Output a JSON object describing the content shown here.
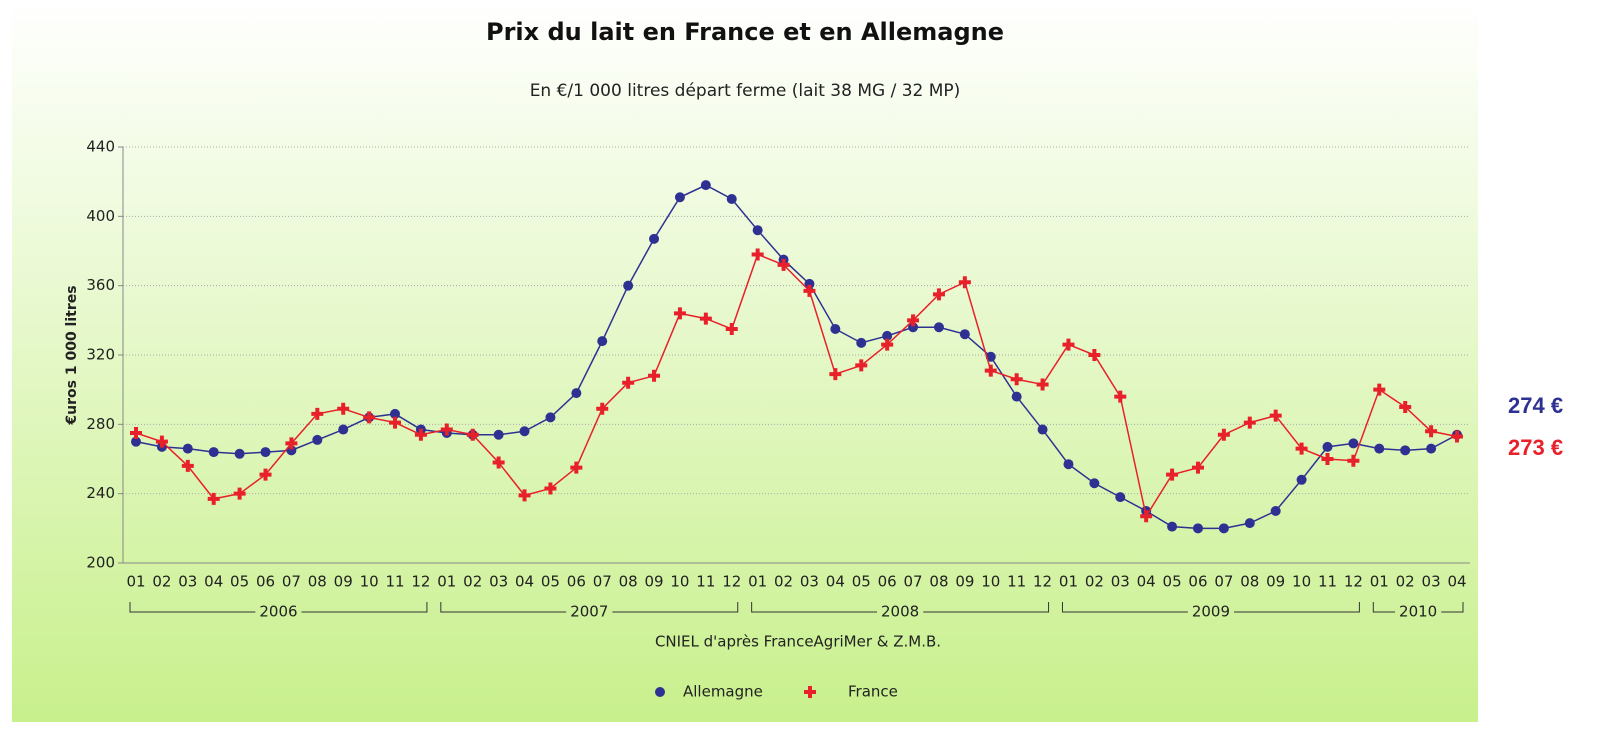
{
  "chart_data": {
    "type": "line",
    "title": "Prix du lait en France et en Allemagne",
    "subtitle": "En €/1 000 litres départ ferme (lait 38 MG / 32 MP)",
    "y_label": "€uros 1 000 litres",
    "source": "CNIEL d'après FranceAgriMer & Z.M.B.",
    "categories": [
      "01",
      "02",
      "03",
      "04",
      "05",
      "06",
      "07",
      "08",
      "09",
      "10",
      "11",
      "12",
      "01",
      "02",
      "03",
      "04",
      "05",
      "06",
      "07",
      "08",
      "09",
      "10",
      "11",
      "12",
      "01",
      "02",
      "03",
      "04",
      "05",
      "06",
      "07",
      "08",
      "09",
      "10",
      "11",
      "12",
      "01",
      "02",
      "03",
      "04",
      "05",
      "06",
      "07",
      "08",
      "09",
      "10",
      "11",
      "12",
      "01",
      "02",
      "03",
      "04"
    ],
    "year_labels": [
      "2006",
      "2007",
      "2008",
      "2009",
      "2010"
    ],
    "ylim": [
      200,
      440
    ],
    "yticks": [
      200,
      240,
      280,
      320,
      360,
      400,
      440
    ],
    "grid": true,
    "legend": "bottom",
    "series": [
      {
        "name": "Allemagne",
        "color": "#2e3192",
        "marker": "circle",
        "values": [
          270,
          267,
          266,
          264,
          263,
          264,
          265,
          271,
          277,
          284,
          286,
          277,
          275,
          274,
          274,
          276,
          284,
          298,
          328,
          360,
          387,
          411,
          418,
          410,
          392,
          375,
          361,
          335,
          327,
          331,
          336,
          336,
          332,
          319,
          296,
          277,
          257,
          246,
          238,
          230,
          221,
          220,
          220,
          223,
          230,
          248,
          267,
          269,
          266,
          265,
          266,
          274
        ]
      },
      {
        "name": "France",
        "color": "#e8202a",
        "marker": "cross",
        "values": [
          275,
          270,
          256,
          237,
          240,
          251,
          269,
          286,
          289,
          284,
          281,
          274,
          277,
          274,
          258,
          239,
          243,
          255,
          289,
          304,
          308,
          344,
          341,
          335,
          378,
          372,
          357,
          309,
          314,
          326,
          340,
          355,
          362,
          311,
          306,
          303,
          326,
          320,
          296,
          227,
          251,
          255,
          274,
          281,
          285,
          266,
          260,
          259,
          300,
          290,
          276,
          273
        ]
      }
    ],
    "annotations": [
      {
        "text": "274 €",
        "color": "#2e3192"
      },
      {
        "text": "273 €",
        "color": "#e8202a"
      }
    ]
  }
}
